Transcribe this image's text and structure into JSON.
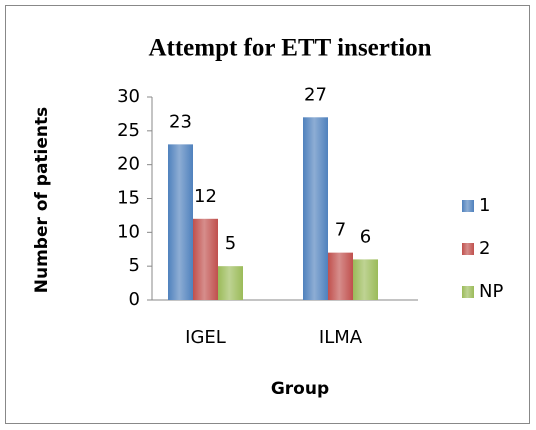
{
  "chart_data": {
    "type": "bar",
    "title": "Attempt for ETT insertion",
    "x_label": "Group",
    "y_label": "Number of patients",
    "categories": [
      "IGEL",
      "ILMA"
    ],
    "series": [
      {
        "name": "1",
        "color": "#4f81bd",
        "values": [
          23,
          27
        ]
      },
      {
        "name": "2",
        "color": "#c0504d",
        "values": [
          12,
          7
        ]
      },
      {
        "name": "NP",
        "color": "#9bbb59",
        "values": [
          5,
          6
        ]
      }
    ],
    "ylim": [
      0,
      30
    ],
    "yticks": [
      0,
      5,
      10,
      15,
      20,
      25,
      30
    ],
    "grid": false,
    "legend": "right"
  }
}
